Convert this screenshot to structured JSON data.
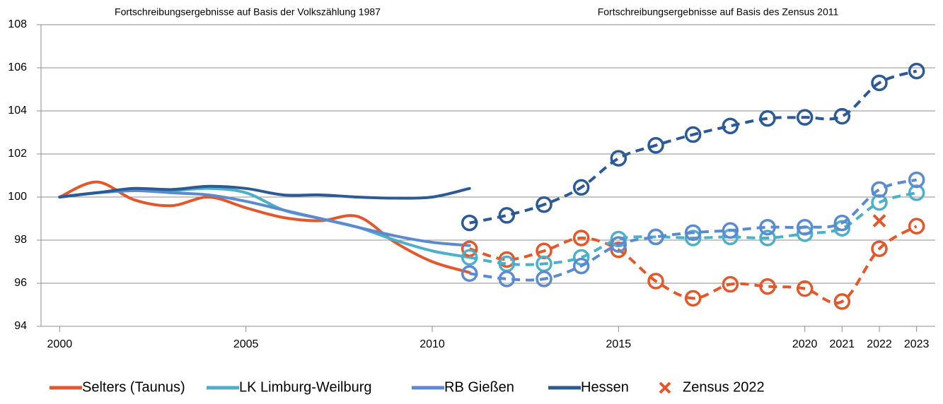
{
  "chart_data": {
    "type": "line",
    "annotations": [
      "Fortschreibungsergebnisse auf Basis der Volkszählung 1987",
      "Fortschreibungsergebnisse auf Basis des Zensus 2011"
    ],
    "x": [
      2000,
      2001,
      2002,
      2003,
      2004,
      2005,
      2006,
      2007,
      2008,
      2009,
      2010,
      2011,
      2012,
      2013,
      2014,
      2015,
      2016,
      2017,
      2018,
      2019,
      2020,
      2021,
      2022,
      2023
    ],
    "xlim": [
      1999.5,
      2023.5
    ],
    "xticks": [
      2000,
      2005,
      2010,
      2015,
      2020,
      2021,
      2022,
      2023
    ],
    "ylim": [
      94,
      108
    ],
    "yticks": [
      94,
      96,
      98,
      100,
      102,
      104,
      106,
      108
    ],
    "grid": true,
    "series": [
      {
        "name": "Selters (Taunus)",
        "color": "#e2582b",
        "values": [
          100,
          100.7,
          99.87,
          99.6,
          100.0,
          99.5,
          99.05,
          98.9,
          99.1,
          97.9,
          97.0,
          96.5,
          null,
          null,
          null,
          null,
          null,
          null,
          null,
          null,
          null,
          null,
          null,
          null
        ],
        "census_values": [
          null,
          null,
          null,
          null,
          null,
          null,
          null,
          null,
          null,
          null,
          null,
          97.6,
          97.1,
          97.5,
          98.1,
          97.55,
          96.1,
          95.3,
          95.95,
          95.85,
          95.75,
          95.15,
          97.6,
          98.65
        ]
      },
      {
        "name": "LK Limburg-Weilburg",
        "color": "#4bb0c8",
        "values": [
          100,
          100.2,
          100.3,
          100.3,
          100.4,
          100.2,
          99.4,
          99.0,
          98.6,
          98.0,
          97.5,
          97.2,
          null,
          null,
          null,
          null,
          null,
          null,
          null,
          null,
          null,
          null,
          null,
          null
        ],
        "census_values": [
          null,
          null,
          null,
          null,
          null,
          null,
          null,
          null,
          null,
          null,
          null,
          97.2,
          96.9,
          96.9,
          97.2,
          98.05,
          98.15,
          98.1,
          98.15,
          98.1,
          98.3,
          98.55,
          99.75,
          100.2
        ]
      },
      {
        "name": "RB Gießen",
        "color": "#5b8ad0",
        "values": [
          100,
          100.2,
          100.3,
          100.2,
          100.1,
          99.8,
          99.4,
          99.0,
          98.6,
          98.2,
          97.9,
          97.75,
          null,
          null,
          null,
          null,
          null,
          null,
          null,
          null,
          null,
          null,
          null,
          null
        ],
        "census_values": [
          null,
          null,
          null,
          null,
          null,
          null,
          null,
          null,
          null,
          null,
          null,
          96.45,
          96.2,
          96.2,
          96.8,
          97.8,
          98.15,
          98.35,
          98.45,
          98.6,
          98.6,
          98.8,
          100.35,
          100.8
        ]
      },
      {
        "name": "Hessen",
        "color": "#2c5a94",
        "values": [
          100,
          100.2,
          100.4,
          100.35,
          100.5,
          100.4,
          100.1,
          100.1,
          100.0,
          99.95,
          100.0,
          100.4,
          null,
          null,
          null,
          null,
          null,
          null,
          null,
          null,
          null,
          null,
          null,
          null
        ],
        "census_values": [
          null,
          null,
          null,
          null,
          null,
          null,
          null,
          null,
          null,
          null,
          null,
          98.8,
          99.15,
          99.65,
          100.45,
          101.8,
          102.4,
          102.9,
          103.3,
          103.65,
          103.7,
          103.75,
          105.3,
          105.85
        ]
      }
    ],
    "census_point": {
      "name": "Zensus 2022",
      "color": "#e2582b",
      "x": 2022,
      "value": 98.9
    }
  }
}
